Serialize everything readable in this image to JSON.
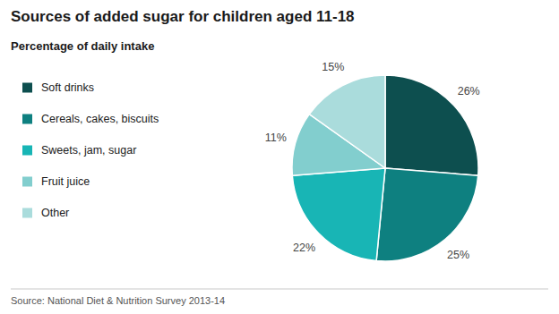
{
  "chart_data": {
    "type": "pie",
    "title": "Sources of added sugar for children aged 11-18",
    "subtitle": "Percentage of daily intake",
    "source": "Source: National Diet & Nutrition Survey 2013-14",
    "categories": [
      "Soft drinks",
      "Cereals, cakes, biscuits",
      "Sweets, jam, sugar",
      "Fruit juice",
      "Other"
    ],
    "values": [
      26,
      25,
      22,
      11,
      15
    ],
    "value_labels": [
      "26%",
      "25%",
      "22%",
      "11%",
      "15%"
    ],
    "colors": [
      "#0d4f4f",
      "#0e8080",
      "#18b5b5",
      "#82cece",
      "#aadcdc"
    ],
    "data_labels": true,
    "legend": "left"
  }
}
